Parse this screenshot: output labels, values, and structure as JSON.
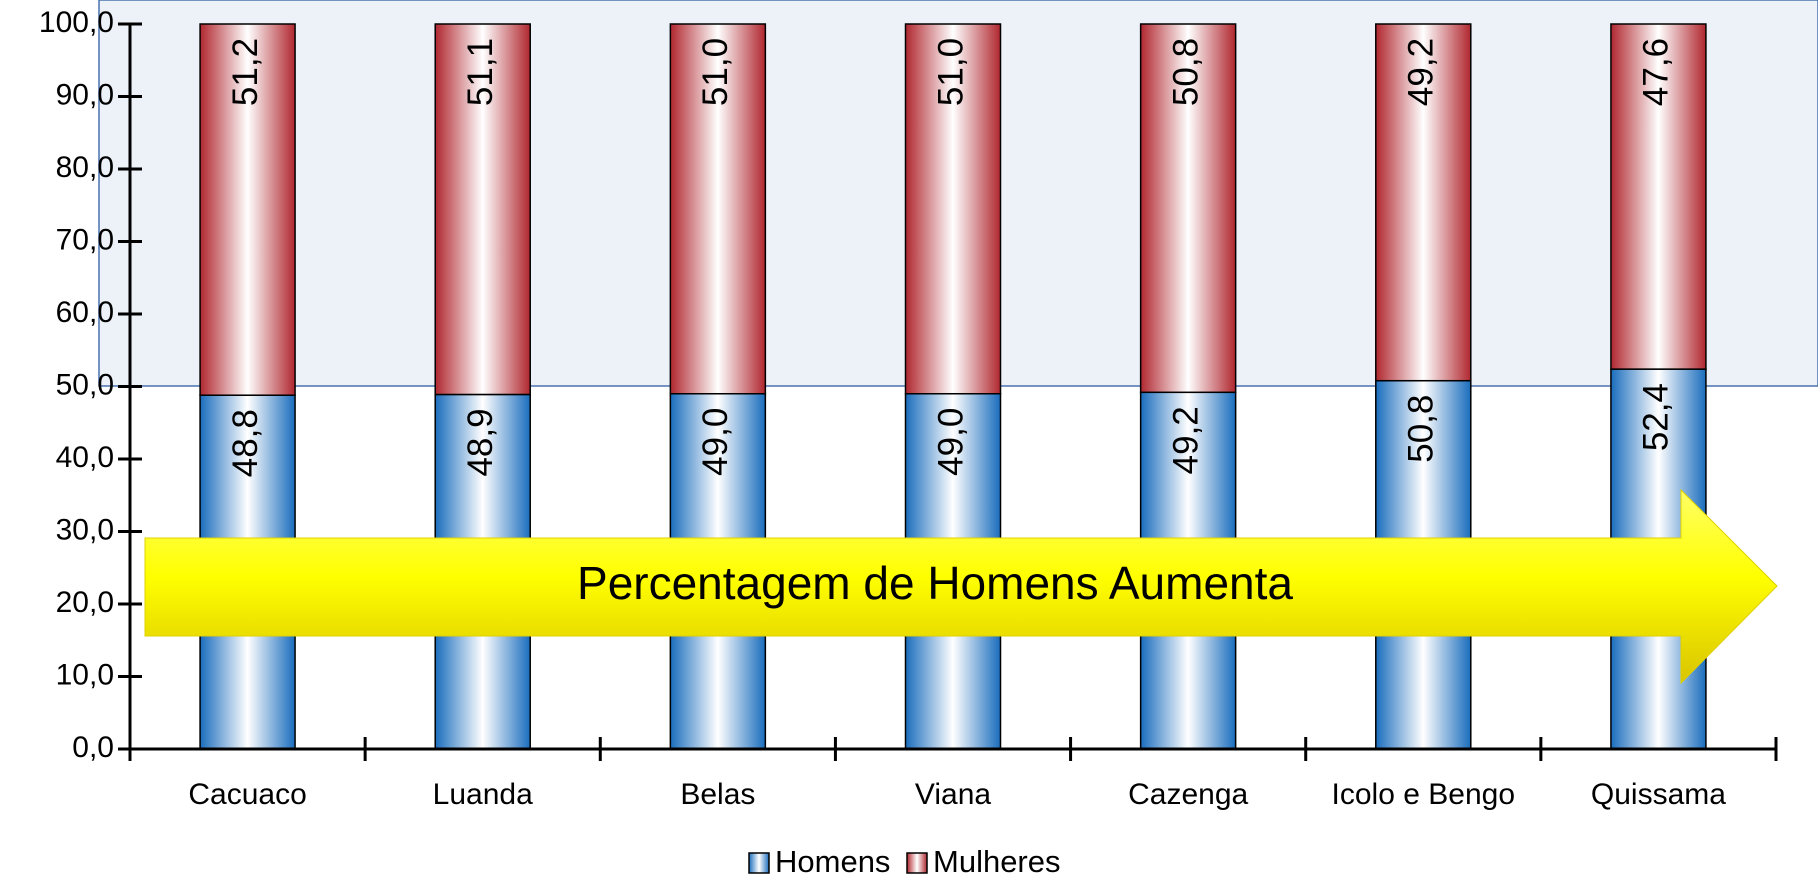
{
  "chart_data": {
    "type": "stacked_bar",
    "annotation": "Percentagem de Homens Aumenta",
    "categories": [
      "Cacuaco",
      "Luanda",
      "Belas",
      "Viana",
      "Cazenga",
      "Icolo e Bengo",
      "Quissama"
    ],
    "series": [
      {
        "name": "Homens",
        "color": "#1a6dbd",
        "values": [
          48.8,
          48.9,
          49.0,
          49.0,
          49.2,
          50.8,
          52.4
        ],
        "value_labels": [
          "48,8",
          "48,9",
          "49,0",
          "49,0",
          "49,2",
          "50,8",
          "52,4"
        ]
      },
      {
        "name": "Mulheres",
        "color": "#b0272f",
        "values": [
          51.2,
          51.1,
          51.0,
          51.0,
          50.8,
          49.2,
          47.6
        ],
        "value_labels": [
          "51,2",
          "51,1",
          "51,0",
          "51,0",
          "50,8",
          "49,2",
          "47,6"
        ]
      }
    ],
    "ylim": [
      0,
      100
    ],
    "yticks": [
      {
        "value": 0,
        "label": "0,0"
      },
      {
        "value": 10,
        "label": "10,0"
      },
      {
        "value": 20,
        "label": "20,0"
      },
      {
        "value": 30,
        "label": "30,0"
      },
      {
        "value": 40,
        "label": "40,0"
      },
      {
        "value": 50,
        "label": "50,0"
      },
      {
        "value": 60,
        "label": "60,0"
      },
      {
        "value": 70,
        "label": "70,0"
      },
      {
        "value": 80,
        "label": "80,0"
      },
      {
        "value": 90,
        "label": "90,0"
      },
      {
        "value": 100,
        "label": "100,0"
      }
    ],
    "legend": "bottom"
  }
}
